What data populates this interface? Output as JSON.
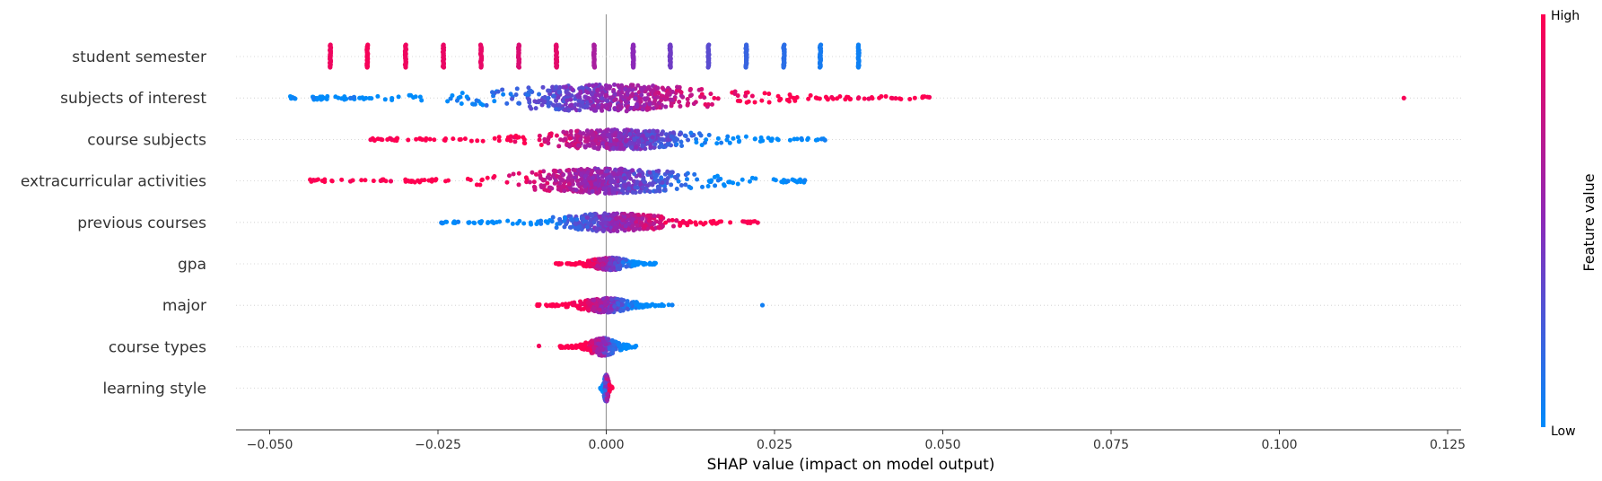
{
  "chart_data": {
    "type": "scatter",
    "subtype": "shap-beeswarm",
    "xlabel": "SHAP value (impact on model output)",
    "xlim": [
      -0.055,
      0.127
    ],
    "xticks": [
      -0.05,
      -0.025,
      0.0,
      0.025,
      0.05,
      0.075,
      0.1,
      0.125
    ],
    "xtick_labels": [
      "−0.050",
      "−0.025",
      "0.000",
      "0.025",
      "0.050",
      "0.075",
      "0.100",
      "0.125"
    ],
    "features": [
      {
        "name": "student semester",
        "kind": "discrete",
        "points": [
          {
            "x": -0.041,
            "v": 0.93
          },
          {
            "x": -0.0355,
            "v": 0.96
          },
          {
            "x": -0.0298,
            "v": 0.93
          },
          {
            "x": -0.0242,
            "v": 0.91
          },
          {
            "x": -0.0186,
            "v": 0.9
          },
          {
            "x": -0.013,
            "v": 0.84
          },
          {
            "x": -0.0074,
            "v": 0.88
          },
          {
            "x": -0.0018,
            "v": 0.62
          },
          {
            "x": 0.004,
            "v": 0.5
          },
          {
            "x": 0.0095,
            "v": 0.4
          },
          {
            "x": 0.0152,
            "v": 0.32
          },
          {
            "x": 0.0208,
            "v": 0.2
          },
          {
            "x": 0.0264,
            "v": 0.15
          },
          {
            "x": 0.0318,
            "v": 0.08
          },
          {
            "x": 0.0375,
            "v": 0.05
          }
        ]
      },
      {
        "name": "subjects of interest",
        "kind": "continuous",
        "range": [
          -0.047,
          0.048
        ],
        "core": [
          -0.012,
          0.012
        ],
        "spread": 0.018,
        "density": 620,
        "halfwidth": 15,
        "color_dir": 1,
        "outliers": [
          {
            "x": -0.0465,
            "v": 0.05
          },
          {
            "x": -0.0435,
            "v": 0.08
          },
          {
            "x": -0.038,
            "v": 0.1
          },
          {
            "x": -0.0375,
            "v": 0.1
          },
          {
            "x": 0.0335,
            "v": 0.95
          },
          {
            "x": 0.0375,
            "v": 0.92
          },
          {
            "x": 0.039,
            "v": 0.9
          },
          {
            "x": 0.0425,
            "v": 0.95
          },
          {
            "x": 0.043,
            "v": 0.97
          },
          {
            "x": 0.048,
            "v": 0.96
          },
          {
            "x": 0.1185,
            "v": 0.97
          }
        ]
      },
      {
        "name": "course subjects",
        "kind": "continuous",
        "range": [
          -0.035,
          0.0325
        ],
        "core": [
          -0.008,
          0.012
        ],
        "spread": 0.014,
        "density": 520,
        "halfwidth": 11,
        "color_dir": -1,
        "outliers": [
          {
            "x": -0.035,
            "v": 0.95
          },
          {
            "x": -0.0335,
            "v": 0.97
          },
          {
            "x": -0.032,
            "v": 0.93
          },
          {
            "x": 0.029,
            "v": 0.05
          },
          {
            "x": 0.032,
            "v": 0.05
          },
          {
            "x": 0.0325,
            "v": 0.06
          }
        ]
      },
      {
        "name": "extracurricular activities",
        "kind": "continuous",
        "range": [
          -0.044,
          0.0295
        ],
        "core": [
          -0.01,
          0.01
        ],
        "spread": 0.014,
        "density": 580,
        "halfwidth": 14,
        "color_dir": -1,
        "outliers": [
          {
            "x": -0.0435,
            "v": 0.96
          },
          {
            "x": -0.038,
            "v": 0.95
          },
          {
            "x": -0.0335,
            "v": 0.96
          },
          {
            "x": -0.032,
            "v": 0.93
          },
          {
            "x": 0.027,
            "v": 0.05
          },
          {
            "x": 0.0295,
            "v": 0.05
          }
        ]
      },
      {
        "name": "previous courses",
        "kind": "continuous",
        "range": [
          -0.0245,
          0.0225
        ],
        "core": [
          -0.006,
          0.008
        ],
        "spread": 0.012,
        "density": 440,
        "halfwidth": 10,
        "color_dir": 1,
        "outliers": [
          {
            "x": -0.0245,
            "v": 0.05
          },
          {
            "x": -0.022,
            "v": 0.06
          },
          {
            "x": 0.0205,
            "v": 0.95
          },
          {
            "x": 0.0225,
            "v": 0.96
          }
        ]
      },
      {
        "name": "gpa",
        "kind": "continuous",
        "range": [
          -0.0075,
          0.0075
        ],
        "core": [
          -0.003,
          0.004
        ],
        "spread": 0.004,
        "density": 320,
        "halfwidth": 7,
        "color_dir": -1,
        "outliers": []
      },
      {
        "name": "major",
        "kind": "continuous",
        "range": [
          -0.0105,
          0.0095
        ],
        "core": [
          -0.002,
          0.002
        ],
        "spread": 0.005,
        "density": 300,
        "halfwidth": 8,
        "color_dir": -1,
        "outliers": [
          {
            "x": 0.0098,
            "v": 0.05
          },
          {
            "x": 0.0232,
            "v": 0.06
          }
        ]
      },
      {
        "name": "course types",
        "kind": "continuous",
        "range": [
          -0.007,
          0.0045
        ],
        "core": [
          -0.002,
          0.001
        ],
        "spread": 0.003,
        "density": 280,
        "halfwidth": 10,
        "color_dir": -1,
        "outliers": [
          {
            "x": -0.01,
            "v": 0.95
          }
        ]
      },
      {
        "name": "learning style",
        "kind": "continuous",
        "range": [
          -0.0009,
          0.0009
        ],
        "core": [
          -0.0005,
          0.0005
        ],
        "spread": 0.0004,
        "density": 320,
        "halfwidth": 15,
        "color_dir": 1,
        "outliers": []
      }
    ],
    "colorbar": {
      "title": "Feature value",
      "high_label": "High",
      "low_label": "Low",
      "low_color": "#008bfb",
      "high_color": "#ff0051"
    },
    "grid": false,
    "zero_line": true
  }
}
